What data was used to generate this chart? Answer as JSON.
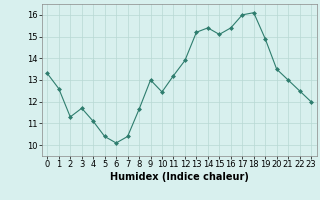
{
  "x": [
    0,
    1,
    2,
    3,
    4,
    5,
    6,
    7,
    8,
    9,
    10,
    11,
    12,
    13,
    14,
    15,
    16,
    17,
    18,
    19,
    20,
    21,
    22,
    23
  ],
  "y": [
    13.3,
    12.6,
    11.3,
    11.7,
    11.1,
    10.4,
    10.1,
    10.4,
    11.65,
    13.0,
    12.45,
    13.2,
    13.9,
    15.2,
    15.4,
    15.1,
    15.4,
    16.0,
    16.1,
    14.9,
    13.5,
    13.0,
    12.5,
    12.0
  ],
  "line_color": "#2e7d6e",
  "marker": "D",
  "marker_size": 2.0,
  "bg_color": "#d8f0ee",
  "grid_color": "#b8d8d4",
  "xlabel": "Humidex (Indice chaleur)",
  "xlabel_fontsize": 7,
  "tick_fontsize": 6,
  "ylim": [
    9.5,
    16.5
  ],
  "xlim": [
    -0.5,
    23.5
  ],
  "yticks": [
    10,
    11,
    12,
    13,
    14,
    15,
    16
  ],
  "xticks": [
    0,
    1,
    2,
    3,
    4,
    5,
    6,
    7,
    8,
    9,
    10,
    11,
    12,
    13,
    14,
    15,
    16,
    17,
    18,
    19,
    20,
    21,
    22,
    23
  ]
}
